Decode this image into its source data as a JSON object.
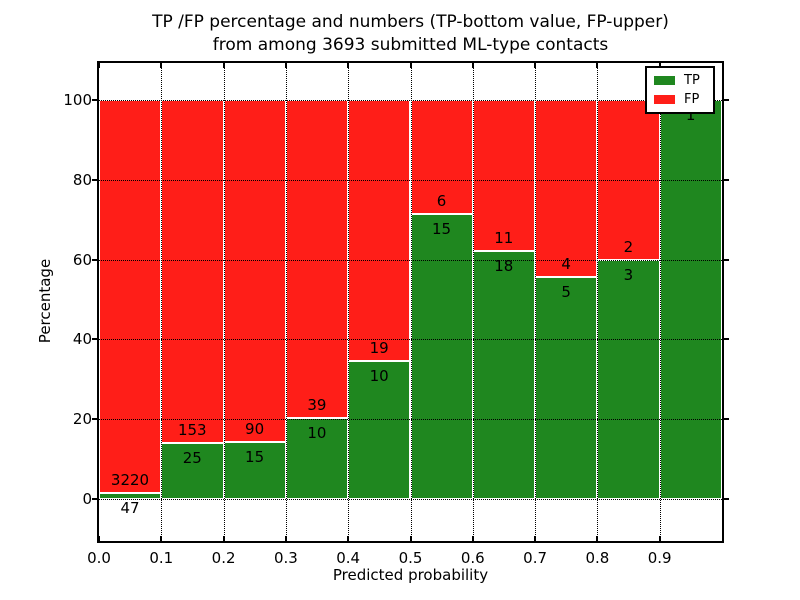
{
  "figure": {
    "title_line1": "TP /FP percentage and numbers (TP-bottom value, FP-upper)",
    "title_line2": "from among 3693 submitted ML-type contacts",
    "background_color": "#ffffff"
  },
  "axes": {
    "xlabel": "Predicted probability",
    "ylabel": "Percentage",
    "ytick_values": [
      0,
      20,
      40,
      60,
      80,
      100
    ],
    "ytick_labels": [
      "0",
      "20",
      "40",
      "60",
      "80",
      "100"
    ],
    "xtick_values": [
      0,
      0.1,
      0.2,
      0.3,
      0.4,
      0.5,
      0.6,
      0.7,
      0.8,
      0.9
    ],
    "xtick_labels": [
      "0.0",
      "0.1",
      "0.2",
      "0.3",
      "0.4",
      "0.5",
      "0.6",
      "0.7",
      "0.8",
      "0.9"
    ],
    "grid": true,
    "grid_style": "dotted",
    "frame_color": "#000000"
  },
  "legend": {
    "position": "upper right",
    "items": [
      {
        "label": "TP",
        "color": "#1f871f"
      },
      {
        "label": "FP",
        "color": "#ff1e18"
      }
    ]
  },
  "chart_data": {
    "type": "bar",
    "stacked": true,
    "normalized": "percent-of-bin",
    "title": "TP /FP percentage and numbers (TP-bottom value, FP-upper) from among 3693 submitted ML-type contacts",
    "xlabel": "Predicted probability",
    "ylabel": "Percentage",
    "xlim": [
      0,
      1
    ],
    "ylim": [
      -10.5,
      109.5
    ],
    "total_contacts": 3693,
    "bin_width": 0.1,
    "series": [
      {
        "name": "TP",
        "color": "#1f871f",
        "values": [
          47,
          25,
          15,
          10,
          10,
          15,
          18,
          5,
          3,
          1
        ]
      },
      {
        "name": "FP",
        "color": "#ff1e18",
        "values": [
          3220,
          153,
          90,
          39,
          19,
          6,
          11,
          4,
          2,
          0
        ]
      }
    ],
    "bins": [
      {
        "x_start": 0.0,
        "x_end": 0.1,
        "tp_count": 47,
        "fp_count": 3220,
        "tp_pct": 1.44,
        "tp_label": "47",
        "fp_label": "3220"
      },
      {
        "x_start": 0.1,
        "x_end": 0.2,
        "tp_count": 25,
        "fp_count": 153,
        "tp_pct": 14.04,
        "tp_label": "25",
        "fp_label": "153"
      },
      {
        "x_start": 0.2,
        "x_end": 0.3,
        "tp_count": 15,
        "fp_count": 90,
        "tp_pct": 14.29,
        "tp_label": "15",
        "fp_label": "90"
      },
      {
        "x_start": 0.3,
        "x_end": 0.4,
        "tp_count": 10,
        "fp_count": 39,
        "tp_pct": 20.41,
        "tp_label": "10",
        "fp_label": "39"
      },
      {
        "x_start": 0.4,
        "x_end": 0.5,
        "tp_count": 10,
        "fp_count": 19,
        "tp_pct": 34.48,
        "tp_label": "10",
        "fp_label": "19"
      },
      {
        "x_start": 0.5,
        "x_end": 0.6,
        "tp_count": 15,
        "fp_count": 6,
        "tp_pct": 71.43,
        "tp_label": "15",
        "fp_label": "6"
      },
      {
        "x_start": 0.6,
        "x_end": 0.7,
        "tp_count": 18,
        "fp_count": 11,
        "tp_pct": 62.07,
        "tp_label": "18",
        "fp_label": "11"
      },
      {
        "x_start": 0.7,
        "x_end": 0.8,
        "tp_count": 5,
        "fp_count": 4,
        "tp_pct": 55.56,
        "tp_label": "5",
        "fp_label": "4"
      },
      {
        "x_start": 0.8,
        "x_end": 0.9,
        "tp_count": 3,
        "fp_count": 2,
        "tp_pct": 60.0,
        "tp_label": "3",
        "fp_label": "2"
      },
      {
        "x_start": 0.9,
        "x_end": 1.0,
        "tp_count": 1,
        "fp_count": 0,
        "tp_pct": 100.0,
        "tp_label": "1",
        "fp_label": ""
      }
    ]
  }
}
